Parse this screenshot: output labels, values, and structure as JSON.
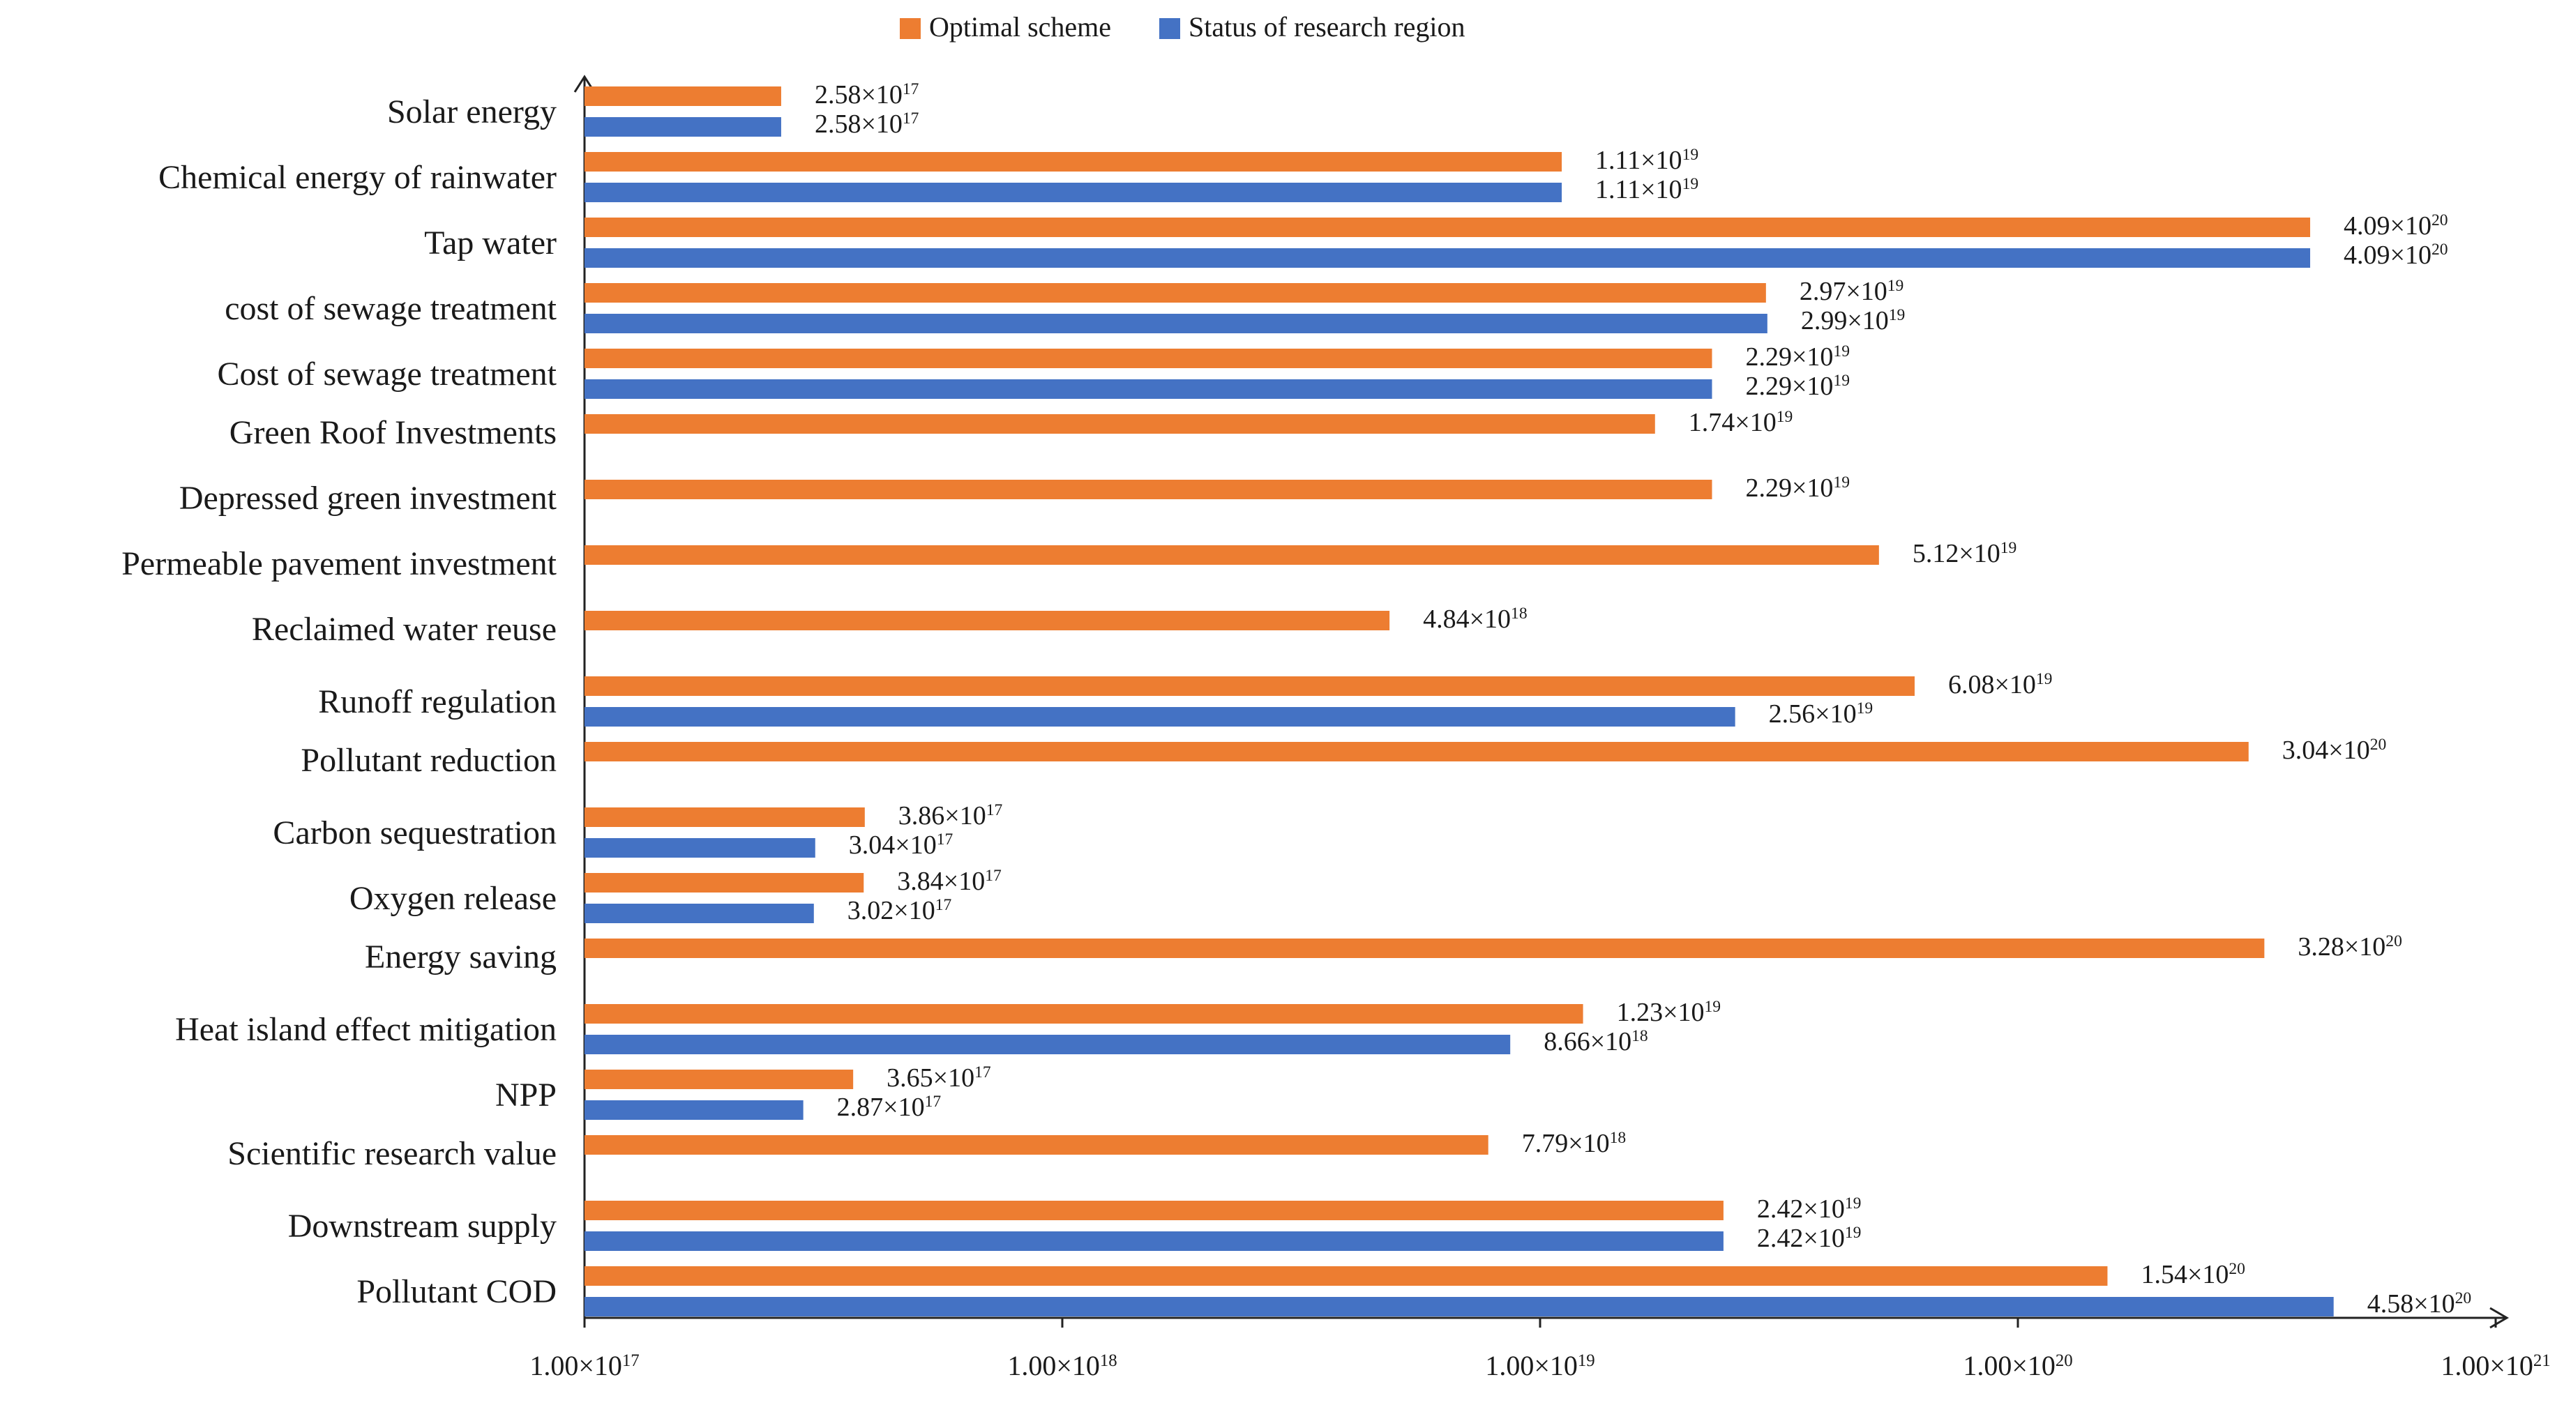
{
  "chart_data": {
    "type": "bar",
    "orientation": "horizontal",
    "x_scale": "log",
    "xlim": [
      1e+17,
      1e+21
    ],
    "x_ticks": [
      {
        "value": 1e+17,
        "mantissa": "1.00×10",
        "exp": "17"
      },
      {
        "value": 1e+18,
        "mantissa": "1.00×10",
        "exp": "18"
      },
      {
        "value": 1e+19,
        "mantissa": "1.00×10",
        "exp": "19"
      },
      {
        "value": 1e+20,
        "mantissa": "1.00×10",
        "exp": "20"
      },
      {
        "value": 1e+21,
        "mantissa": "1.00×10",
        "exp": "21"
      }
    ],
    "legend": [
      {
        "name": "Optimal scheme",
        "color": "#ED7D31"
      },
      {
        "name": "Status of research region",
        "color": "#4472C4"
      }
    ],
    "legend_position": "top-center",
    "series": [
      {
        "name": "Optimal scheme",
        "color": "#ED7D31"
      },
      {
        "name": "Status of research region",
        "color": "#4472C4"
      }
    ],
    "categories": [
      {
        "label": "Solar energy",
        "optimal": {
          "value": 2.58e+17,
          "mantissa": "2.58×10",
          "exp": "17"
        },
        "status": {
          "value": 2.58e+17,
          "mantissa": "2.58×10",
          "exp": "17"
        }
      },
      {
        "label": "Chemical energy of rainwater",
        "optimal": {
          "value": 1.11e+19,
          "mantissa": "1.11×10",
          "exp": "19"
        },
        "status": {
          "value": 1.11e+19,
          "mantissa": "1.11×10",
          "exp": "19"
        }
      },
      {
        "label": "Tap water",
        "optimal": {
          "value": 4.09e+20,
          "mantissa": "4.09×10",
          "exp": "20"
        },
        "status": {
          "value": 4.09e+20,
          "mantissa": "4.09×10",
          "exp": "20"
        }
      },
      {
        "label": "cost of sewage treatment",
        "optimal": {
          "value": 2.97e+19,
          "mantissa": "2.97×10",
          "exp": "19"
        },
        "status": {
          "value": 2.99e+19,
          "mantissa": "2.99×10",
          "exp": "19"
        }
      },
      {
        "label": "Cost of sewage treatment",
        "optimal": {
          "value": 2.29e+19,
          "mantissa": "2.29×10",
          "exp": "19"
        },
        "status": {
          "value": 2.29e+19,
          "mantissa": "2.29×10",
          "exp": "19"
        }
      },
      {
        "label": "Green Roof Investments",
        "optimal": {
          "value": 1.74e+19,
          "mantissa": "1.74×10",
          "exp": "19"
        },
        "status": null
      },
      {
        "label": "Depressed green investment",
        "optimal": {
          "value": 2.29e+19,
          "mantissa": "2.29×10",
          "exp": "19"
        },
        "status": null
      },
      {
        "label": "Permeable pavement investment",
        "optimal": {
          "value": 5.12e+19,
          "mantissa": "5.12×10",
          "exp": "19"
        },
        "status": null
      },
      {
        "label": "Reclaimed water reuse",
        "optimal": {
          "value": 4.84e+18,
          "mantissa": "4.84×10",
          "exp": "18"
        },
        "status": null
      },
      {
        "label": "Runoff regulation",
        "optimal": {
          "value": 6.08e+19,
          "mantissa": "6.08×10",
          "exp": "19"
        },
        "status": {
          "value": 2.56e+19,
          "mantissa": "2.56×10",
          "exp": "19"
        }
      },
      {
        "label": "Pollutant reduction",
        "optimal": {
          "value": 3.04e+20,
          "mantissa": "3.04×10",
          "exp": "20"
        },
        "status": null
      },
      {
        "label": "Carbon sequestration",
        "optimal": {
          "value": 3.86e+17,
          "mantissa": "3.86×10",
          "exp": "17"
        },
        "status": {
          "value": 3.04e+17,
          "mantissa": "3.04×10",
          "exp": "17"
        }
      },
      {
        "label": "Oxygen release",
        "optimal": {
          "value": 3.84e+17,
          "mantissa": "3.84×10",
          "exp": "17"
        },
        "status": {
          "value": 3.02e+17,
          "mantissa": "3.02×10",
          "exp": "17"
        }
      },
      {
        "label": "Energy saving",
        "optimal": {
          "value": 3.28e+20,
          "mantissa": "3.28×10",
          "exp": "20"
        },
        "status": null
      },
      {
        "label": "Heat island effect mitigation",
        "optimal": {
          "value": 1.23e+19,
          "mantissa": "1.23×10",
          "exp": "19"
        },
        "status": {
          "value": 8.66e+18,
          "mantissa": "8.66×10",
          "exp": "18"
        }
      },
      {
        "label": "NPP",
        "optimal": {
          "value": 3.65e+17,
          "mantissa": "3.65×10",
          "exp": "17"
        },
        "status": {
          "value": 2.87e+17,
          "mantissa": "2.87×10",
          "exp": "17"
        }
      },
      {
        "label": "Scientific research value",
        "optimal": {
          "value": 7.79e+18,
          "mantissa": "7.79×10",
          "exp": "18"
        },
        "status": null
      },
      {
        "label": "Downstream supply",
        "optimal": {
          "value": 2.42e+19,
          "mantissa": "2.42×10",
          "exp": "19"
        },
        "status": {
          "value": 2.42e+19,
          "mantissa": "2.42×10",
          "exp": "19"
        }
      },
      {
        "label": "Pollutant COD",
        "optimal": {
          "value": 1.54e+20,
          "mantissa": "1.54×10",
          "exp": "20"
        },
        "status": {
          "value": 4.58e+20,
          "mantissa": "4.58×10",
          "exp": "20"
        }
      }
    ]
  }
}
